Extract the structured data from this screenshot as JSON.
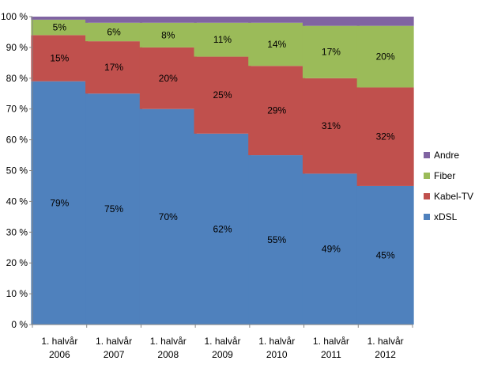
{
  "chart_data": {
    "type": "bar",
    "stacked": true,
    "title": "",
    "xlabel": "",
    "ylabel": "",
    "ylim": [
      0,
      100
    ],
    "y_ticks": [
      "0 %",
      "10 %",
      "20 %",
      "30 %",
      "40 %",
      "50 %",
      "60 %",
      "70 %",
      "80 %",
      "90 %",
      "100 %"
    ],
    "categories": [
      [
        "1. halvår",
        "2006"
      ],
      [
        "1. halvår",
        "2007"
      ],
      [
        "1. halvår",
        "2008"
      ],
      [
        "1. halvår",
        "2009"
      ],
      [
        "1. halvår",
        "2010"
      ],
      [
        "1. halvår",
        "2011"
      ],
      [
        "1. halvår",
        "2012"
      ]
    ],
    "series": [
      {
        "name": "xDSL",
        "color": "#4F81BD",
        "values": [
          79,
          75,
          70,
          62,
          55,
          49,
          45
        ],
        "labels": [
          "79%",
          "75%",
          "70%",
          "62%",
          "55%",
          "49%",
          "45%"
        ]
      },
      {
        "name": "Kabel-TV",
        "color": "#C0504D",
        "values": [
          15,
          17,
          20,
          25,
          29,
          31,
          32
        ],
        "labels": [
          "15%",
          "17%",
          "20%",
          "25%",
          "29%",
          "31%",
          "32%"
        ]
      },
      {
        "name": "Fiber",
        "color": "#9BBB59",
        "values": [
          5,
          6,
          8,
          11,
          14,
          17,
          20
        ],
        "labels": [
          "5%",
          "6%",
          "8%",
          "11%",
          "14%",
          "17%",
          "20%"
        ]
      },
      {
        "name": "Andre",
        "color": "#8064A2",
        "values": [
          1,
          2,
          2,
          2,
          2,
          3,
          3
        ],
        "labels": [
          "",
          "",
          "",
          "",
          "",
          "",
          ""
        ]
      }
    ],
    "legend": {
      "placement": "right",
      "order": [
        "Andre",
        "Fiber",
        "Kabel-TV",
        "xDSL"
      ]
    },
    "grid": false,
    "axis_color": "#868686"
  }
}
